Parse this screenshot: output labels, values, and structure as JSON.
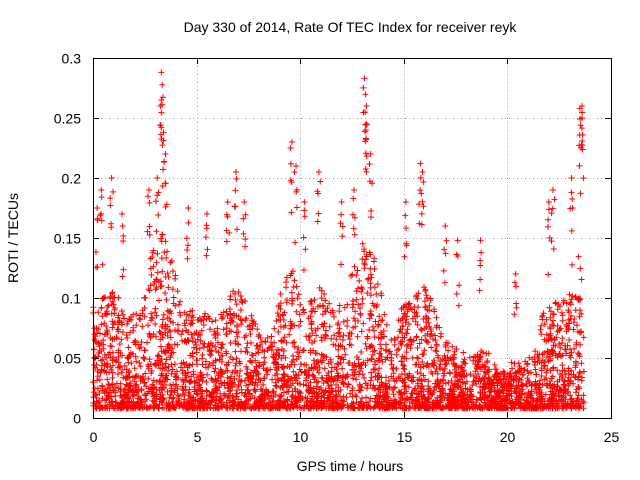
{
  "chart_data": {
    "type": "scatter",
    "title": "Day 330 of 2014, Rate Of TEC Index for receiver reyk",
    "xlabel": "GPS time / hours",
    "ylabel": "ROTI / TECUs",
    "xlim": [
      0,
      25
    ],
    "ylim": [
      0,
      0.3
    ],
    "xticks": [
      0,
      5,
      10,
      15,
      20,
      25
    ],
    "yticks": [
      0,
      0.05,
      0.1,
      0.15,
      0.2,
      0.25,
      0.3
    ],
    "xtick_labels": [
      "0",
      "5",
      "10",
      "15",
      "20",
      "25"
    ],
    "ytick_labels": [
      "0",
      "0.05",
      "0.1",
      "0.15",
      "0.2",
      "0.25",
      "0.3"
    ],
    "grid": true,
    "marker": "+",
    "marker_color": "#ff0000",
    "x_data_range": [
      0,
      23.7
    ],
    "series": [
      {
        "name": "ROTI",
        "note": "dense point cloud; values mostly 0.01-0.12; notable peaks listed",
        "peaks": [
          {
            "x": 0.2,
            "y": 0.175
          },
          {
            "x": 0.4,
            "y": 0.19
          },
          {
            "x": 0.9,
            "y": 0.2
          },
          {
            "x": 1.4,
            "y": 0.17
          },
          {
            "x": 2.7,
            "y": 0.19
          },
          {
            "x": 3.1,
            "y": 0.2
          },
          {
            "x": 3.3,
            "y": 0.288
          },
          {
            "x": 3.3,
            "y": 0.265
          },
          {
            "x": 3.4,
            "y": 0.238
          },
          {
            "x": 3.5,
            "y": 0.22
          },
          {
            "x": 4.6,
            "y": 0.175
          },
          {
            "x": 5.5,
            "y": 0.17
          },
          {
            "x": 6.5,
            "y": 0.18
          },
          {
            "x": 6.9,
            "y": 0.205
          },
          {
            "x": 7.3,
            "y": 0.18
          },
          {
            "x": 9.6,
            "y": 0.23
          },
          {
            "x": 9.8,
            "y": 0.21
          },
          {
            "x": 10.2,
            "y": 0.18
          },
          {
            "x": 10.9,
            "y": 0.205
          },
          {
            "x": 12.0,
            "y": 0.18
          },
          {
            "x": 12.6,
            "y": 0.19
          },
          {
            "x": 13.1,
            "y": 0.283
          },
          {
            "x": 13.2,
            "y": 0.26
          },
          {
            "x": 13.2,
            "y": 0.245
          },
          {
            "x": 13.4,
            "y": 0.22
          },
          {
            "x": 15.1,
            "y": 0.18
          },
          {
            "x": 15.8,
            "y": 0.212
          },
          {
            "x": 15.9,
            "y": 0.205
          },
          {
            "x": 17.0,
            "y": 0.16
          },
          {
            "x": 17.6,
            "y": 0.148
          },
          {
            "x": 18.7,
            "y": 0.148
          },
          {
            "x": 20.4,
            "y": 0.12
          },
          {
            "x": 22.0,
            "y": 0.18
          },
          {
            "x": 22.2,
            "y": 0.19
          },
          {
            "x": 23.1,
            "y": 0.2
          },
          {
            "x": 23.5,
            "y": 0.258
          },
          {
            "x": 23.6,
            "y": 0.26
          },
          {
            "x": 23.6,
            "y": 0.25
          }
        ]
      }
    ]
  }
}
